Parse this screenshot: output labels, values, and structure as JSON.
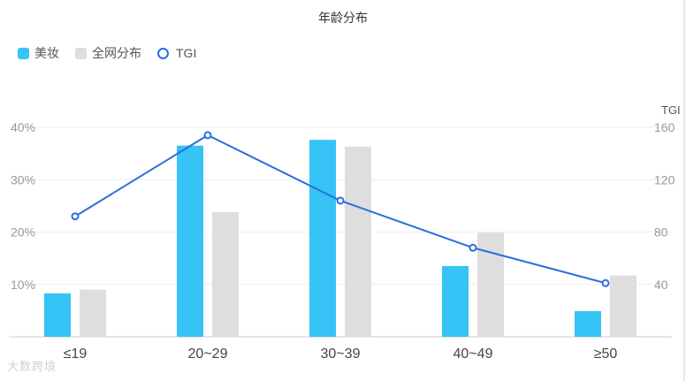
{
  "chart_data": {
    "type": "bar",
    "title": "年龄分布",
    "categories": [
      "≤19",
      "20~29",
      "30~39",
      "40~49",
      "≥50"
    ],
    "series": [
      {
        "name": "美妆",
        "kind": "bar",
        "axis": "left",
        "color": "#36c3f5",
        "values": [
          8.3,
          36.5,
          37.6,
          13.5,
          4.9
        ]
      },
      {
        "name": "全网分布",
        "kind": "bar",
        "axis": "left",
        "color": "#dedede",
        "values": [
          9.0,
          23.8,
          36.3,
          19.9,
          11.7
        ]
      },
      {
        "name": "TGI",
        "kind": "line",
        "axis": "right",
        "color": "#2a6fdb",
        "values": [
          92,
          154,
          104,
          68,
          41
        ]
      }
    ],
    "left_axis": {
      "ticks": [
        "10%",
        "20%",
        "30%",
        "40%"
      ],
      "tick_values": [
        10,
        20,
        30,
        40
      ],
      "ylim": [
        0,
        40
      ]
    },
    "right_axis": {
      "title": "TGI",
      "ticks": [
        "40",
        "80",
        "120",
        "160"
      ],
      "tick_values": [
        40,
        80,
        120,
        160
      ],
      "ylim": [
        0,
        160
      ]
    },
    "grid": true,
    "legend": "top-left"
  },
  "watermark": "大数跨境"
}
